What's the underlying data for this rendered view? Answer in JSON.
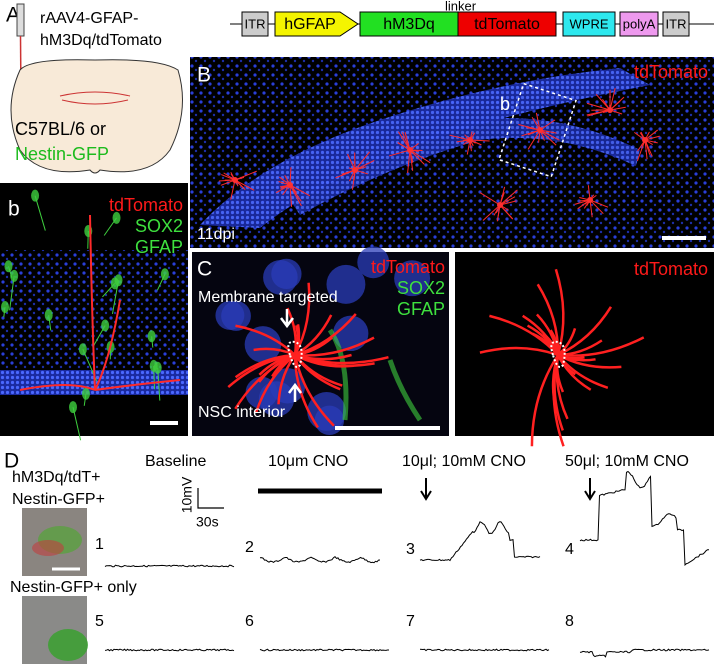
{
  "panel_a": {
    "label": "A",
    "vector": [
      "rAAV4-GFAP-",
      "hM3Dq/tdTomato"
    ],
    "construct": {
      "linker": "linker",
      "elements": [
        "ITR",
        "hGFAP",
        "hM3Dq",
        "tdTomato",
        "WPRE",
        "polyA",
        "ITR"
      ]
    },
    "mouse": [
      "C57BL/6 or",
      "Nestin-GFP"
    ]
  },
  "panel_b_large": {
    "label": "B",
    "stain": "tdTomato",
    "inset": "b",
    "time": "11dpi"
  },
  "panel_b_small": {
    "label": "b",
    "stains": [
      "tdTomato",
      "SOX2",
      "GFAP"
    ]
  },
  "panel_c": {
    "label": "C",
    "stains": [
      "tdTomato",
      "SOX2",
      "GFAP"
    ],
    "arrow_top": "Membrane targeted",
    "arrow_bottom": "NSC interior",
    "right_stain": "tdTomato"
  },
  "panel_d": {
    "label": "D",
    "row1": [
      "hM3Dq/tdT+",
      "Nestin-GFP+"
    ],
    "row2": "Nestin-GFP+ only",
    "conditions": [
      "Baseline",
      "10μm CNO",
      "10μl; 10mM CNO",
      "50μl; 10mM CNO"
    ],
    "scale": {
      "voltage": "10mV",
      "time": "30s"
    },
    "trace_numbers": [
      "1",
      "2",
      "3",
      "4",
      "5",
      "6",
      "7",
      "8"
    ]
  }
}
